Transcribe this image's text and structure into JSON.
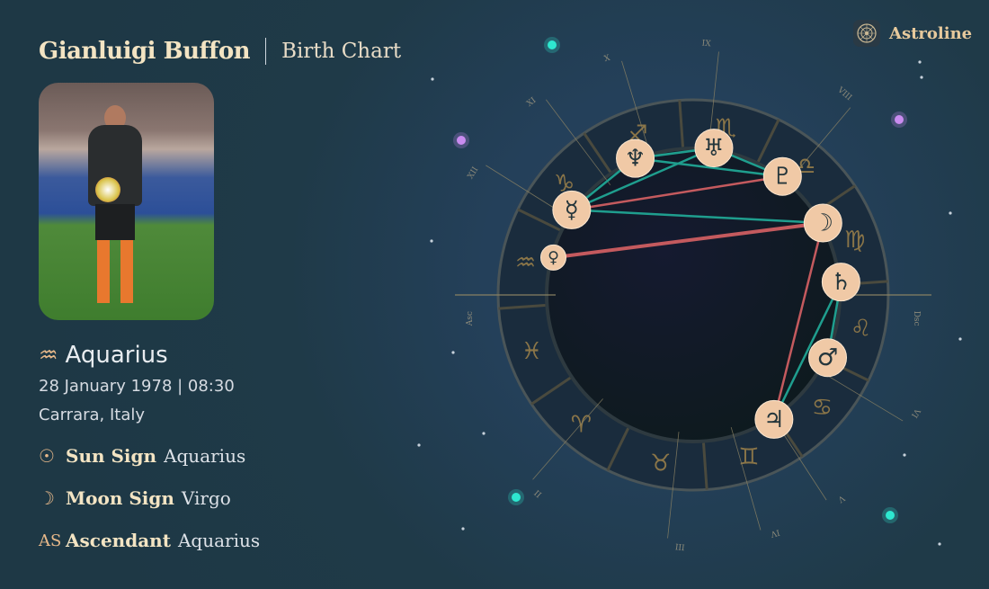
{
  "header": {
    "name": "Gianluigi Buffon",
    "subtitle": "Birth Chart"
  },
  "brand": {
    "name": "Astroline",
    "icon": "zodiac-wheel-icon"
  },
  "profile": {
    "sign_icon": "♒︎",
    "sign": "Aquarius",
    "date": "28 January 1978 | 08:30",
    "place": "Carrara, Italy"
  },
  "details": [
    {
      "icon": "☉︎",
      "label": "Sun Sign",
      "value": "Aquarius"
    },
    {
      "icon": "☽︎",
      "label": "Moon Sign",
      "value": "Virgo"
    },
    {
      "icon": "AS",
      "label": "Ascendant",
      "value": "Aquarius"
    }
  ],
  "chart": {
    "signs": [
      {
        "name": "aquarius",
        "glyph": "♒︎"
      },
      {
        "name": "capricorn",
        "glyph": "♑︎"
      },
      {
        "name": "sagittarius",
        "glyph": "♐︎"
      },
      {
        "name": "scorpio",
        "glyph": "♏︎"
      },
      {
        "name": "libra",
        "glyph": "♎︎"
      },
      {
        "name": "virgo",
        "glyph": "♍︎"
      },
      {
        "name": "leo",
        "glyph": "♌︎"
      },
      {
        "name": "cancer",
        "glyph": "♋︎"
      },
      {
        "name": "gemini",
        "glyph": "♊︎"
      },
      {
        "name": "taurus",
        "glyph": "♉︎"
      },
      {
        "name": "aries",
        "glyph": "♈︎"
      },
      {
        "name": "pisces",
        "glyph": "♓︎"
      }
    ],
    "houses": [
      "Asc",
      "II",
      "III",
      "IV",
      "V",
      "VI",
      "Dsc",
      "VIII",
      "IX",
      "X",
      "XI",
      "XII"
    ],
    "planets": [
      {
        "name": "neptune",
        "glyph": "♆︎"
      },
      {
        "name": "uranus",
        "glyph": "♅︎"
      },
      {
        "name": "pluto",
        "glyph": "♇︎"
      },
      {
        "name": "mercury",
        "glyph": "☿︎"
      },
      {
        "name": "venus",
        "glyph": "♀︎"
      },
      {
        "name": "moon",
        "glyph": "☽︎"
      },
      {
        "name": "saturn",
        "glyph": "♄︎"
      },
      {
        "name": "mars",
        "glyph": "♂︎"
      },
      {
        "name": "jupiter",
        "glyph": "♃︎"
      }
    ],
    "aspects": [
      {
        "from": "neptune",
        "to": "uranus",
        "type": "harmonious"
      },
      {
        "from": "neptune",
        "to": "pluto",
        "type": "harmonious"
      },
      {
        "from": "mercury",
        "to": "neptune",
        "type": "harmonious"
      },
      {
        "from": "mercury",
        "to": "uranus",
        "type": "harmonious"
      },
      {
        "from": "uranus",
        "to": "pluto",
        "type": "harmonious"
      },
      {
        "from": "mercury",
        "to": "moon",
        "type": "harmonious"
      },
      {
        "from": "mercury",
        "to": "pluto",
        "type": "tense"
      },
      {
        "from": "venus",
        "to": "moon",
        "type": "tense"
      },
      {
        "from": "moon",
        "to": "jupiter",
        "type": "tense"
      },
      {
        "from": "saturn",
        "to": "jupiter",
        "type": "harmonious"
      },
      {
        "from": "saturn",
        "to": "mars",
        "type": "harmonious"
      }
    ],
    "colors": {
      "harmonious": "#1f9e8e",
      "tense": "#c45a5e",
      "gold": "#8a7548",
      "planet": "#f0c9a6"
    }
  }
}
